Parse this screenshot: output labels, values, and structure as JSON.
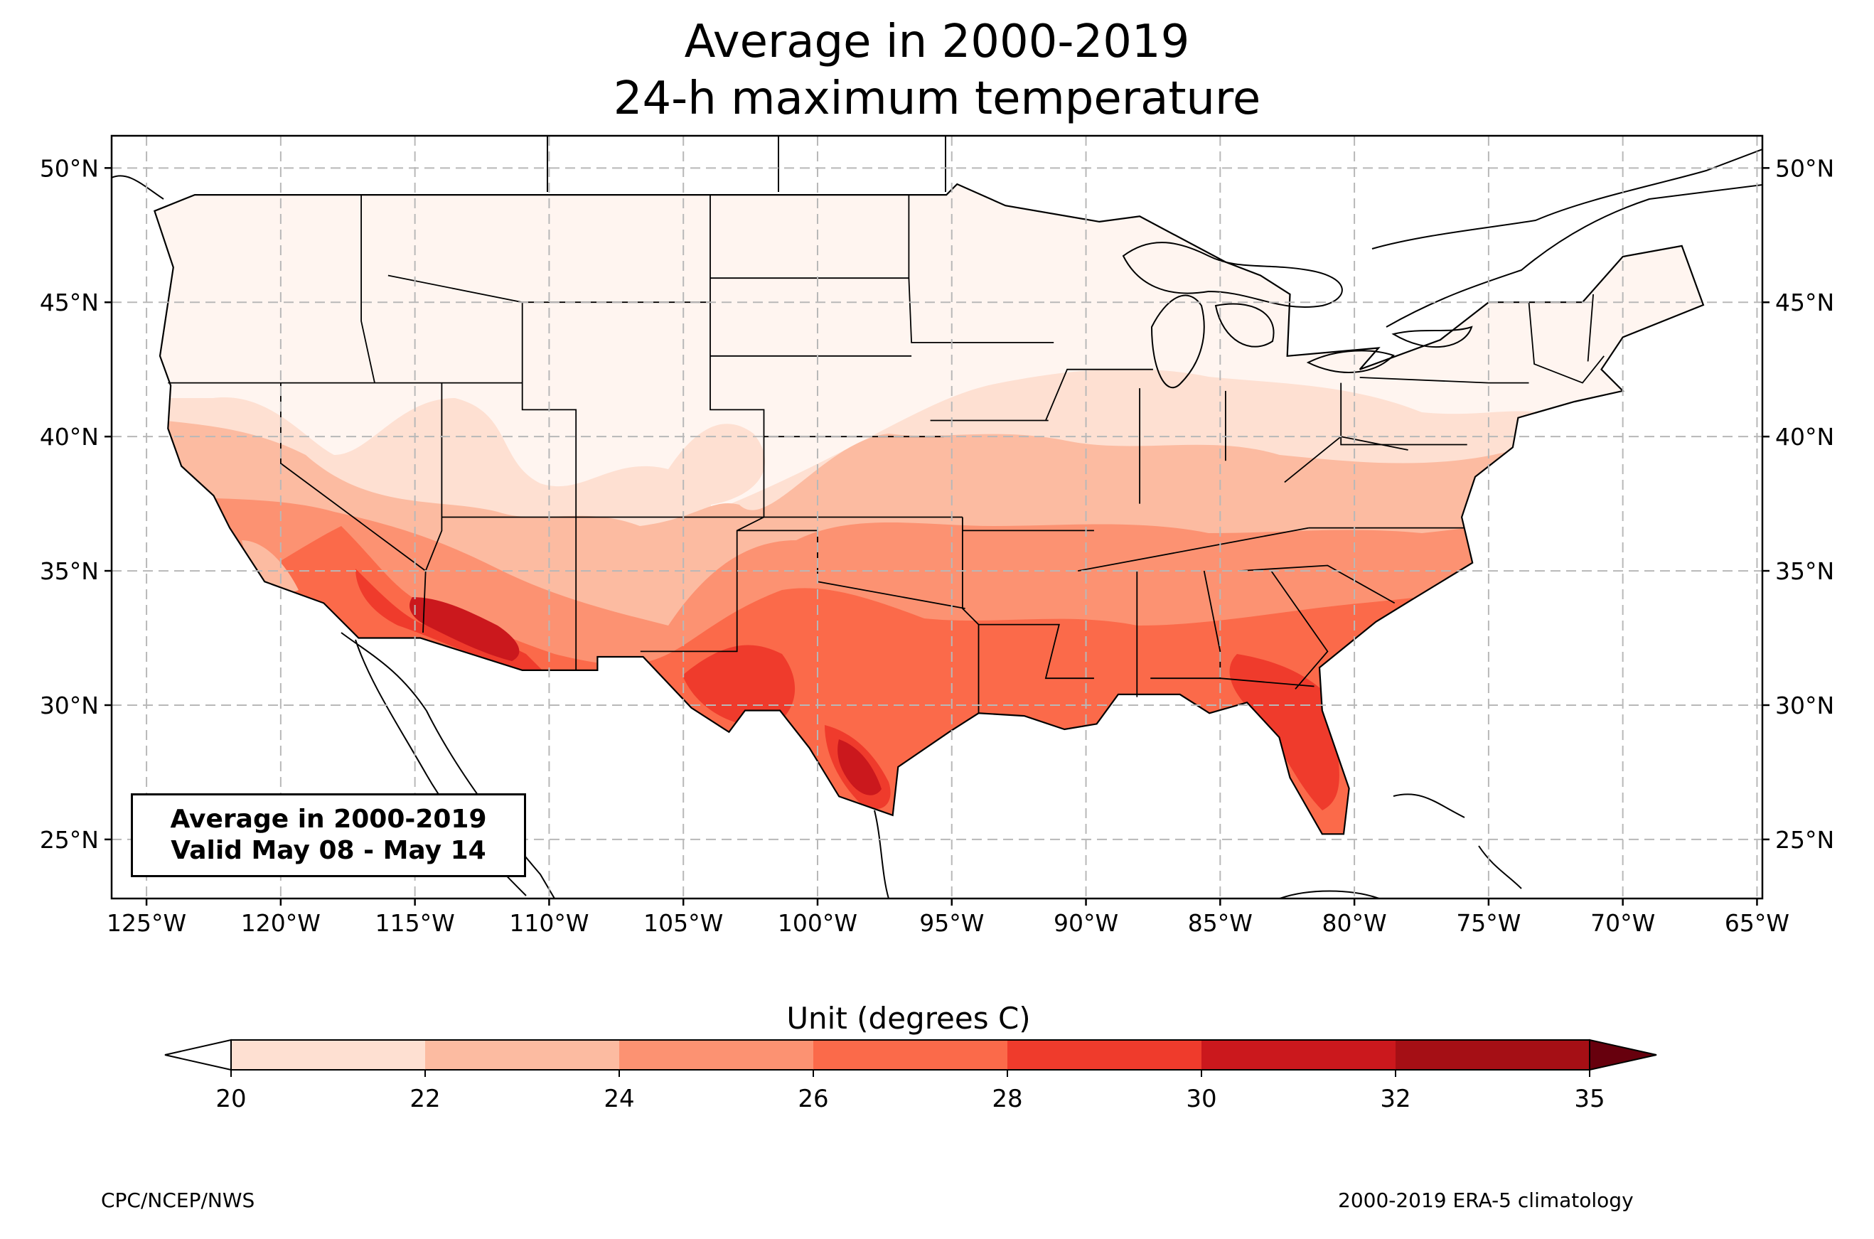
{
  "title": {
    "line1": "Average in 2000-2019",
    "line2": "24-h maximum temperature"
  },
  "map": {
    "region": "Contiguous United States",
    "projection": "PlateCarree",
    "lon_range": [
      -126.3,
      -64.8
    ],
    "lat_range": [
      22.8,
      51.2
    ],
    "grid": "dashed",
    "lat_ticks": [
      "50°N",
      "45°N",
      "40°N",
      "35°N",
      "30°N",
      "25°N"
    ],
    "lat_tick_values": [
      50,
      45,
      40,
      35,
      30,
      25
    ],
    "lon_ticks": [
      "125°W",
      "120°W",
      "115°W",
      "110°W",
      "105°W",
      "100°W",
      "95°W",
      "90°W",
      "85°W",
      "80°W",
      "75°W",
      "70°W",
      "65°W"
    ],
    "lon_tick_values": [
      -125,
      -120,
      -115,
      -110,
      -105,
      -100,
      -95,
      -90,
      -85,
      -80,
      -75,
      -70,
      -65
    ],
    "info_box": {
      "line1": "Average in 2000-2019",
      "line2": "Valid May 08 - May 14"
    }
  },
  "colorbar": {
    "label": "Unit (degrees C)",
    "ticks": [
      "20",
      "22",
      "24",
      "26",
      "28",
      "30",
      "32",
      "35"
    ],
    "levels": [
      20,
      22,
      24,
      26,
      28,
      30,
      32,
      35
    ],
    "colors": [
      "#fee0d2",
      "#fcbba1",
      "#fc9272",
      "#fb6a4a",
      "#ef3b2c",
      "#cb181d",
      "#a50f15"
    ],
    "under_color": "#ffffff",
    "over_color": "#67000d"
  },
  "footer": {
    "left": "CPC/NCEP/NWS",
    "right": "2000-2019 ERA-5 climatology"
  }
}
